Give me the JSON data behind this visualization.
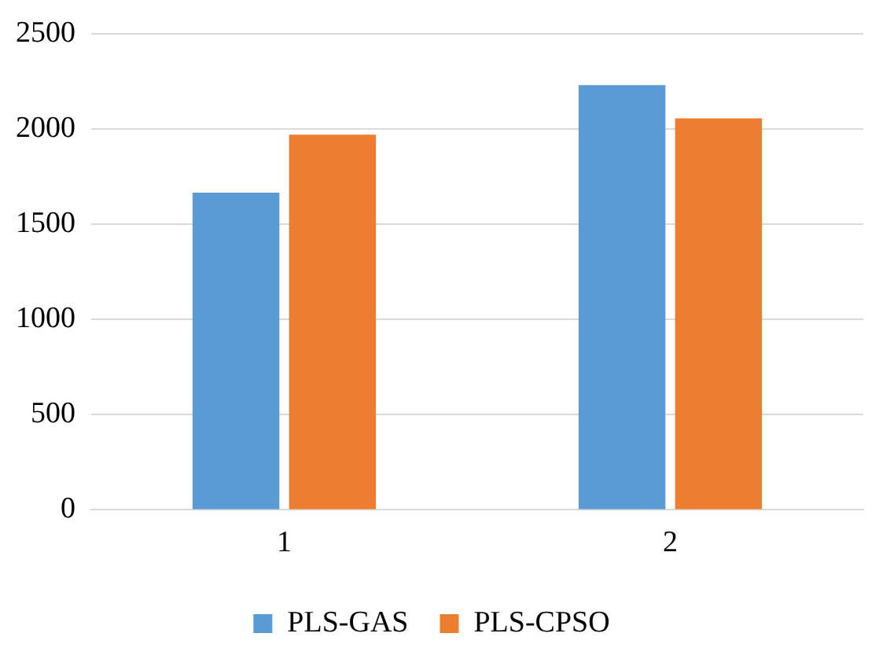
{
  "chart_data": {
    "type": "bar",
    "categories": [
      "1",
      "2"
    ],
    "series": [
      {
        "name": "PLS-GAS",
        "color": "#5b9bd5",
        "values": [
          1665,
          2230
        ]
      },
      {
        "name": "PLS-CPSO",
        "color": "#ed7d31",
        "values": [
          1970,
          2055
        ]
      }
    ],
    "ylim": [
      0,
      2500
    ],
    "yticks": [
      0,
      500,
      1000,
      1500,
      2000,
      2500
    ],
    "grid": "y",
    "legend": "bottom"
  }
}
